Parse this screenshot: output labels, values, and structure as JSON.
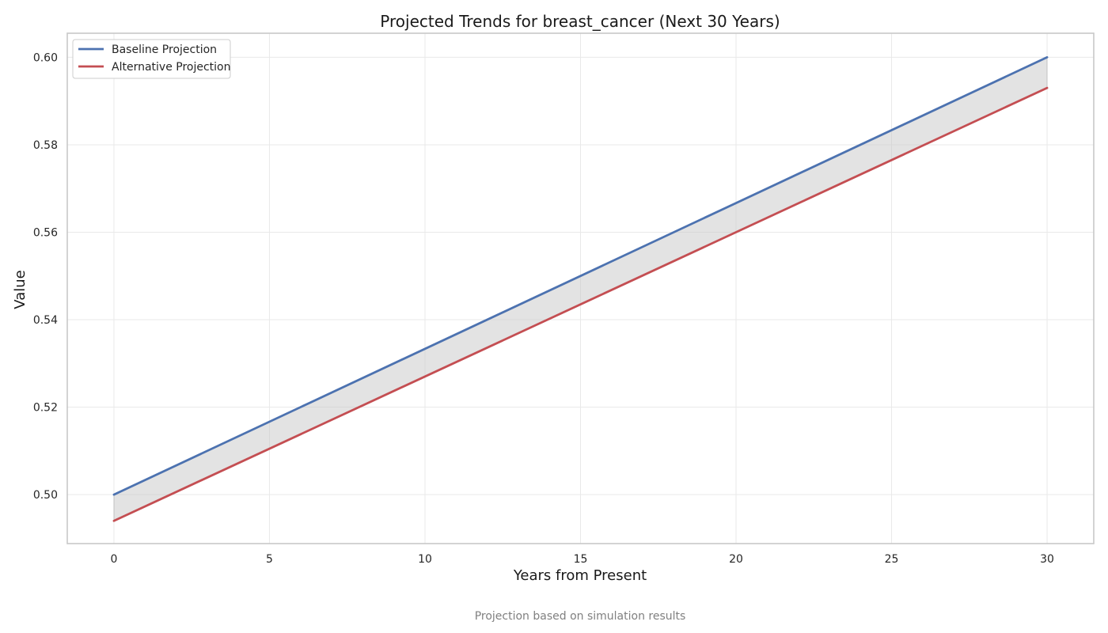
{
  "chart_data": {
    "type": "line",
    "title": "Projected Trends for breast_cancer (Next 30 Years)",
    "xlabel": "Years from Present",
    "ylabel": "Value",
    "caption": "Projection based on simulation results",
    "xlim": [
      -1.5,
      31.5
    ],
    "ylim": [
      0.4888,
      0.6055
    ],
    "x_ticks": [
      0,
      5,
      10,
      15,
      20,
      25,
      30
    ],
    "y_ticks": [
      0.5,
      0.52,
      0.54,
      0.56,
      0.58,
      0.6
    ],
    "y_tick_decimals": 2,
    "grid": true,
    "legend_position": "top-left",
    "fill_between": {
      "color": "#c8c8c8",
      "opacity": 0.5
    },
    "series": [
      {
        "name": "Baseline Projection",
        "color": "#4c72b0",
        "x": [
          0,
          30
        ],
        "values": [
          0.5,
          0.6
        ]
      },
      {
        "name": "Alternative Projection",
        "color": "#c44e52",
        "x": [
          0,
          30
        ],
        "values": [
          0.494,
          0.593
        ]
      }
    ]
  }
}
